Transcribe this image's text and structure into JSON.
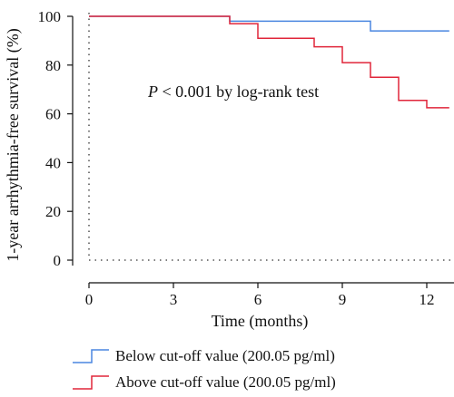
{
  "chart_data": {
    "type": "line",
    "subtype": "kaplan-meier step",
    "xlabel": "Time (months)",
    "ylabel": "1-year arrhythmia-free survival (%)",
    "xlim": [
      -1,
      12.8
    ],
    "ylim": [
      -3,
      103
    ],
    "xticks": [
      "0",
      "3",
      "6",
      "9",
      "12"
    ],
    "yticks": [
      "0",
      "20",
      "40",
      "60",
      "80",
      "100"
    ],
    "annotation": {
      "p_symbol": "P",
      "text": " < 0.001 by log-rank test"
    },
    "series": [
      {
        "name": "Below cut-off value (200.05 pg/ml)",
        "color": "#4a86e0",
        "steps": [
          [
            0,
            100
          ],
          [
            5,
            98
          ],
          [
            10,
            94
          ],
          [
            12.8,
            94
          ]
        ]
      },
      {
        "name": "Above cut-off value (200.05 pg/ml)",
        "color": "#e0263a",
        "steps": [
          [
            0,
            100
          ],
          [
            5,
            97
          ],
          [
            6,
            91
          ],
          [
            8,
            87.5
          ],
          [
            9,
            81
          ],
          [
            10,
            75
          ],
          [
            11,
            65.5
          ],
          [
            12,
            62.5
          ],
          [
            12.8,
            62.5
          ]
        ]
      }
    ],
    "reference_lines": {
      "x": 0,
      "y": 0,
      "style": "dotted"
    },
    "legend_position": "bottom-left"
  }
}
